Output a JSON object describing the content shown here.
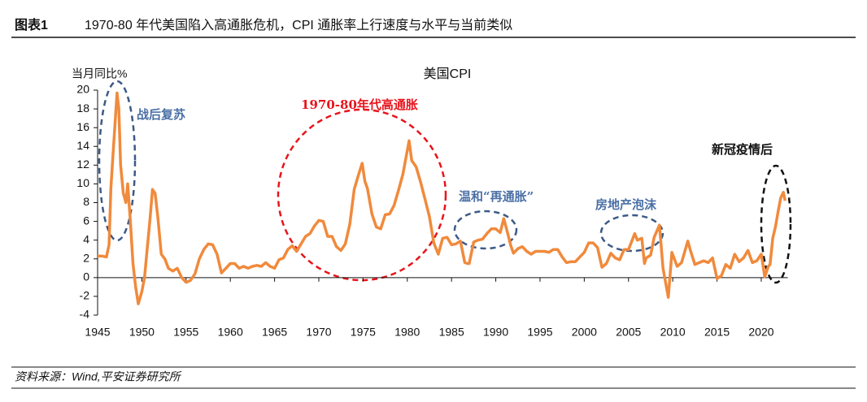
{
  "header": {
    "label": "图表1",
    "title": "1970-80 年代美国陷入高通胀危机，CPI 通胀率上行速度与水平与当前类似"
  },
  "footer": {
    "source": "资料来源：Wind,平安证券研究所"
  },
  "chart_data": {
    "type": "line",
    "title": "美国CPI",
    "y_label": "当月同比%",
    "color": "#f08a3c",
    "x": [
      1945,
      1945.5,
      1946,
      1946.3,
      1946.5,
      1946.8,
      1947.2,
      1947.4,
      1947.6,
      1947.9,
      1948.2,
      1948.4,
      1948.7,
      1949,
      1949.3,
      1949.6,
      1950,
      1950.3,
      1950.6,
      1950.9,
      1951.2,
      1951.5,
      1951.8,
      1952.2,
      1952.6,
      1953,
      1953.5,
      1954,
      1954.5,
      1955,
      1955.5,
      1956,
      1956.5,
      1957,
      1957.5,
      1958,
      1958.5,
      1959,
      1959.5,
      1960,
      1960.5,
      1961,
      1961.5,
      1962,
      1962.5,
      1963,
      1963.5,
      1964,
      1964.5,
      1965,
      1965.5,
      1966,
      1966.5,
      1967,
      1967.5,
      1968,
      1968.5,
      1969,
      1969.5,
      1970,
      1970.5,
      1971,
      1971.5,
      1972,
      1972.5,
      1973,
      1973.5,
      1974,
      1974.5,
      1974.9,
      1975.2,
      1975.5,
      1976,
      1976.5,
      1977,
      1977.5,
      1978,
      1978.5,
      1979,
      1979.5,
      1980.2,
      1980.5,
      1981,
      1981.5,
      1982,
      1982.5,
      1983,
      1983.5,
      1984,
      1984.5,
      1985,
      1985.5,
      1986,
      1986.5,
      1986.8,
      1987,
      1987.5,
      1988,
      1988.5,
      1989,
      1989.5,
      1990,
      1990.5,
      1990.9,
      1991.3,
      1991.7,
      1992,
      1992.5,
      1993,
      1993.5,
      1994,
      1994.5,
      1995,
      1995.5,
      1996,
      1996.5,
      1997,
      1997.5,
      1998,
      1998.5,
      1999,
      1999.5,
      2000,
      2000.5,
      2001,
      2001.5,
      2002,
      2002.5,
      2003,
      2003.5,
      2004,
      2004.5,
      2005,
      2005.7,
      2006,
      2006.5,
      2006.8,
      2007,
      2007.5,
      2007.9,
      2008.5,
      2008.9,
      2009.5,
      2009.9,
      2010.5,
      2011,
      2011.7,
      2012,
      2012.5,
      2013,
      2013.5,
      2014,
      2014.5,
      2015,
      2015.5,
      2016,
      2016.5,
      2017,
      2017.5,
      2018,
      2018.5,
      2019,
      2019.5,
      2020,
      2020.4,
      2020.8,
      2021,
      2021.3,
      2021.6,
      2021.9,
      2022.2,
      2022.5,
      2022.7
    ],
    "values": [
      2.3,
      2.3,
      2.2,
      3.5,
      9.5,
      14,
      19.7,
      18,
      12,
      9,
      8,
      10,
      6,
      1.5,
      -1,
      -2.8,
      -1.5,
      0,
      3,
      6,
      9.4,
      9,
      6.5,
      2.5,
      2,
      1,
      0.7,
      1,
      0,
      -0.5,
      -0.3,
      0.4,
      2,
      3,
      3.6,
      3.5,
      2.5,
      0.5,
      1,
      1.5,
      1.5,
      1,
      1.2,
      1,
      1.2,
      1.3,
      1.2,
      1.6,
      1.2,
      1,
      1.9,
      2.1,
      3,
      3.4,
      2.8,
      3.6,
      4.4,
      4.7,
      5.5,
      6.1,
      6,
      4.4,
      4.4,
      3.3,
      2.9,
      3.6,
      5.7,
      9.4,
      11,
      12.2,
      10.3,
      9.5,
      6.8,
      5.4,
      5.2,
      6.7,
      6.8,
      7.7,
      9.3,
      11,
      14.6,
      12.5,
      11.8,
      10.2,
      8.4,
      6.5,
      3.7,
      2.5,
      4.2,
      4.3,
      3.5,
      3.6,
      3.9,
      1.6,
      1.5,
      1.5,
      3.8,
      4,
      4.1,
      4.7,
      5.2,
      5.2,
      4.8,
      6.3,
      4.9,
      3.4,
      2.6,
      3.1,
      3.3,
      2.8,
      2.5,
      2.8,
      2.8,
      2.8,
      2.7,
      3,
      3,
      2.2,
      1.6,
      1.7,
      1.7,
      2.2,
      2.7,
      3.7,
      3.7,
      3.2,
      1.1,
      1.5,
      2.6,
      2.1,
      1.9,
      3,
      3,
      4.7,
      4,
      4.2,
      1.5,
      2.1,
      2.4,
      4.3,
      5.6,
      1,
      -2.1,
      2.7,
      1.2,
      1.6,
      3.9,
      2.9,
      1.4,
      1.6,
      1.8,
      1.6,
      2.1,
      -0.1,
      0.2,
      1.4,
      1,
      2.5,
      1.7,
      2.1,
      2.9,
      1.6,
      1.8,
      2.5,
      0.1,
      1.2,
      1.4,
      4.2,
      5.4,
      7,
      8.5,
      9.1,
      8.2
    ],
    "xlim": [
      1945,
      2023
    ],
    "xticks": [
      1945,
      1950,
      1955,
      1960,
      1965,
      1970,
      1975,
      1980,
      1985,
      1990,
      1995,
      2000,
      2005,
      2010,
      2015,
      2020
    ],
    "ylim": [
      -4,
      20
    ],
    "yticks": [
      -4,
      -2,
      0,
      2,
      4,
      6,
      8,
      10,
      12,
      14,
      16,
      18,
      20
    ],
    "annotations": [
      {
        "text": "战后复苏",
        "color": "#4a6fa5"
      },
      {
        "text": "1970-80年代高通胀",
        "color": "#e8141c"
      },
      {
        "text": "温和“再通胀”",
        "color": "#4a6fa5"
      },
      {
        "text": "房地产泡沫",
        "color": "#4a6fa5"
      },
      {
        "text": "新冠疫情后",
        "color": "#111111"
      }
    ]
  }
}
